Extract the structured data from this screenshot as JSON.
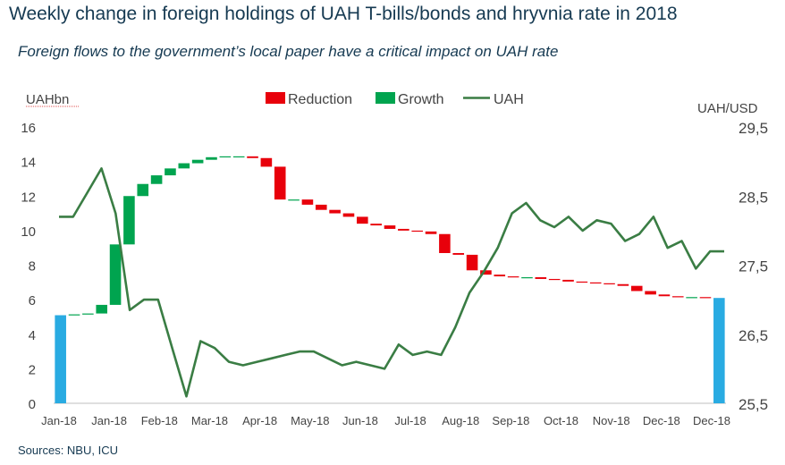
{
  "title": "Weekly change in foreign holdings of UAH T-bills/bonds and hryvnia rate in 2018",
  "subtitle": "Foreign flows to the government’s local paper have a critical impact on UAH rate",
  "source": "Sources: NBU, ICU",
  "chart_data": {
    "type": "waterfall+line",
    "left_axis_label": "UAHbn",
    "right_axis_label": "UAH/USD",
    "left_ticks": [
      "0",
      "2",
      "4",
      "6",
      "8",
      "10",
      "12",
      "14",
      "16"
    ],
    "right_ticks": [
      "25,5",
      "26,5",
      "27,5",
      "28,5",
      "29,5"
    ],
    "ylim_left": [
      0,
      16
    ],
    "ylim_right": [
      25.5,
      29.5
    ],
    "x_tick_labels": [
      "Jan-18",
      "Jan-18",
      "Feb-18",
      "Mar-18",
      "Apr-18",
      "May-18",
      "Jun-18",
      "Jul-18",
      "Aug-18",
      "Sep-18",
      "Oct-18",
      "Nov-18",
      "Dec-18",
      "Dec-18"
    ],
    "legend": [
      {
        "name": "Reduction",
        "color": "#e8000b"
      },
      {
        "name": "Growth",
        "color": "#00a44f"
      },
      {
        "name": "UAH",
        "color": "#3a7d44"
      }
    ],
    "totals_color": "#29abe2",
    "grid": false,
    "start_total": 5.1,
    "end_total": 6.1,
    "weekly_holdings": [
      5.1,
      5.15,
      5.2,
      5.7,
      9.2,
      12.0,
      12.7,
      13.2,
      13.6,
      13.9,
      14.1,
      14.25,
      14.3,
      14.3,
      14.2,
      13.7,
      11.8,
      11.8,
      11.5,
      11.2,
      11.0,
      10.8,
      10.4,
      10.3,
      10.1,
      10.0,
      9.95,
      9.8,
      8.7,
      8.6,
      7.7,
      7.45,
      7.35,
      7.3,
      7.3,
      7.2,
      7.15,
      7.05,
      7.0,
      6.95,
      6.9,
      6.8,
      6.5,
      6.3,
      6.2,
      6.15,
      6.15,
      6.1
    ],
    "uah_rate": [
      28.2,
      28.2,
      28.55,
      28.9,
      28.25,
      26.85,
      27.0,
      27.0,
      26.3,
      25.6,
      26.4,
      26.3,
      26.1,
      26.05,
      26.1,
      26.15,
      26.2,
      26.25,
      26.25,
      26.15,
      26.05,
      26.1,
      26.05,
      26.0,
      26.35,
      26.2,
      26.25,
      26.2,
      26.6,
      27.1,
      27.4,
      27.75,
      28.25,
      28.4,
      28.15,
      28.05,
      28.2,
      28.0,
      28.15,
      28.1,
      27.85,
      27.95,
      28.2,
      27.75,
      27.85,
      27.45,
      27.7,
      27.7
    ]
  }
}
